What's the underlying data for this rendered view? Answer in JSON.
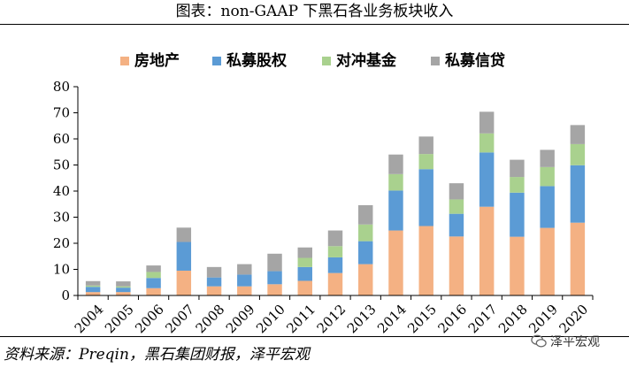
{
  "header": {
    "title": "图表：non-GAAP 下黑石各业务板块收入"
  },
  "footer": {
    "source": "资料来源：Preqin，黑石集团财报，泽平宏观",
    "watermark": "泽平宏观"
  },
  "chart_data": {
    "type": "bar",
    "stacked": true,
    "categories": [
      "2004",
      "2005",
      "2006",
      "2007",
      "2008",
      "2009",
      "2010",
      "2011",
      "2012",
      "2013",
      "2014",
      "2015",
      "2016",
      "2017",
      "2018",
      "2019",
      "2020"
    ],
    "series": [
      {
        "name": "房地产",
        "color": "#F4B183",
        "values": [
          1.3,
          1.3,
          2.8,
          9.5,
          3.5,
          3.5,
          4.3,
          5.6,
          8.6,
          12.0,
          24.9,
          26.6,
          22.6,
          34.0,
          22.5,
          25.9,
          27.9
        ]
      },
      {
        "name": "私募股权",
        "color": "#5B9BD5",
        "values": [
          2.0,
          1.7,
          3.9,
          11.0,
          3.4,
          4.5,
          5.0,
          5.3,
          6.0,
          8.8,
          15.3,
          21.8,
          8.7,
          20.8,
          16.9,
          16.0,
          22.0
        ]
      },
      {
        "name": "对冲基金",
        "color": "#A9D18E",
        "values": [
          0.5,
          0.5,
          2.3,
          0.0,
          0.0,
          0.0,
          0.0,
          3.5,
          4.3,
          6.4,
          6.3,
          5.8,
          5.5,
          7.3,
          6.0,
          7.3,
          8.1
        ]
      },
      {
        "name": "私募信贷",
        "color": "#A5A5A5",
        "values": [
          1.7,
          1.9,
          2.5,
          5.5,
          4.0,
          4.0,
          6.7,
          4.0,
          6.0,
          7.4,
          7.5,
          6.7,
          6.2,
          8.3,
          6.6,
          6.6,
          7.3
        ]
      }
    ],
    "title": "non-GAAP 下黑石各业务板块收入",
    "xlabel": "",
    "ylabel": "",
    "ylim": [
      0,
      80
    ],
    "yticks": [
      0,
      10,
      20,
      30,
      40,
      50,
      60,
      70,
      80
    ],
    "legend_position": "top",
    "grid": false
  }
}
